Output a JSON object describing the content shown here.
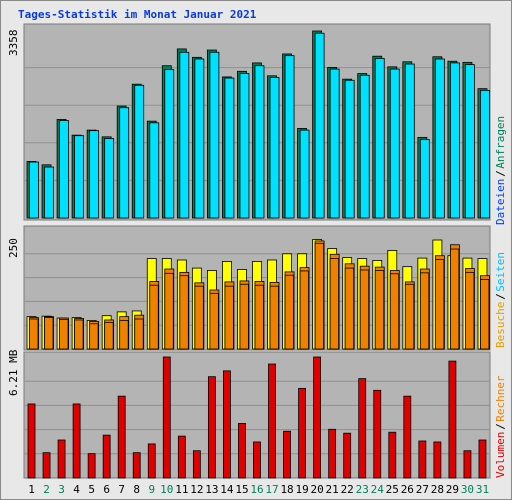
{
  "title": "Tages-Statistik im Monat Januar 2021",
  "colors": {
    "panel_bg": "#b4b4b4",
    "grid": "#909090",
    "hits": "#00805a",
    "files": "#00e0ff",
    "pages": "#f08000",
    "visits": "#ffff00",
    "kbytes": "#e00000",
    "label_hits": "#00805a",
    "label_files": "#0040ff",
    "label_pages": "#00c0ff",
    "label_visits": "#e0a000",
    "label_sites": "#f08000",
    "label_kbytes": "#e00000",
    "day_normal": "#000000",
    "day_weekend": "#00805a"
  },
  "chart_data": [
    {
      "type": "bar",
      "name": "top",
      "ymax_label": "3358",
      "ylim": [
        0,
        3358
      ],
      "categories": [
        "1",
        "2",
        "3",
        "4",
        "5",
        "6",
        "7",
        "8",
        "9",
        "10",
        "11",
        "12",
        "13",
        "14",
        "15",
        "16",
        "17",
        "18",
        "19",
        "20",
        "21",
        "22",
        "23",
        "24",
        "25",
        "26",
        "27",
        "28",
        "29",
        "30",
        "31"
      ],
      "series": [
        {
          "name": "Anfragen",
          "values": [
            1010,
            950,
            1760,
            1480,
            1570,
            1450,
            2000,
            2390,
            1730,
            2720,
            3020,
            2870,
            3000,
            2520,
            2620,
            2770,
            2540,
            2930,
            1600,
            3340,
            2690,
            2480,
            2580,
            2890,
            2700,
            2790,
            1440,
            2880,
            2800,
            2780,
            2310
          ]
        },
        {
          "name": "Dateien",
          "values": [
            1000,
            910,
            1740,
            1470,
            1560,
            1420,
            1970,
            2370,
            1700,
            2650,
            2960,
            2840,
            2960,
            2500,
            2580,
            2720,
            2510,
            2900,
            1570,
            3300,
            2660,
            2460,
            2550,
            2850,
            2660,
            2750,
            1400,
            2840,
            2770,
            2740,
            2280
          ]
        }
      ]
    },
    {
      "type": "bar",
      "name": "middle",
      "ymax_label": "250",
      "ylim": [
        0,
        250
      ],
      "categories": [
        "1",
        "2",
        "3",
        "4",
        "5",
        "6",
        "7",
        "8",
        "9",
        "10",
        "11",
        "12",
        "13",
        "14",
        "15",
        "16",
        "17",
        "18",
        "19",
        "20",
        "21",
        "22",
        "23",
        "24",
        "25",
        "26",
        "27",
        "28",
        "29",
        "30",
        "31"
      ],
      "series": [
        {
          "name": "Seiten",
          "values": [
            68,
            69,
            65,
            66,
            60,
            70,
            78,
            80,
            190,
            190,
            187,
            170,
            165,
            184,
            167,
            184,
            187,
            200,
            200,
            230,
            211,
            192,
            190,
            186,
            207,
            173,
            191,
            229,
            196,
            191,
            190
          ]
        },
        {
          "name": "Besuche",
          "values": [
            66,
            68,
            65,
            64,
            58,
            61,
            68,
            71,
            142,
            168,
            161,
            139,
            124,
            141,
            143,
            142,
            140,
            162,
            171,
            227,
            199,
            179,
            174,
            172,
            165,
            141,
            168,
            196,
            219,
            169,
            154
          ]
        },
        {
          "name": "Rechner",
          "values": [
            63,
            66,
            62,
            61,
            53,
            56,
            60,
            63,
            134,
            159,
            154,
            132,
            117,
            132,
            136,
            134,
            132,
            155,
            164,
            222,
            190,
            170,
            166,
            165,
            158,
            136,
            160,
            188,
            210,
            161,
            146
          ]
        }
      ]
    },
    {
      "type": "bar",
      "name": "bottom",
      "ymax_label": "6.21 MB",
      "ylim": [
        0,
        6.21
      ],
      "categories": [
        "1",
        "2",
        "3",
        "4",
        "5",
        "6",
        "7",
        "8",
        "9",
        "10",
        "11",
        "12",
        "13",
        "14",
        "15",
        "16",
        "17",
        "18",
        "19",
        "20",
        "21",
        "22",
        "23",
        "24",
        "25",
        "26",
        "27",
        "28",
        "29",
        "30",
        "31"
      ],
      "series": [
        {
          "name": "Volumen",
          "values": [
            3.8,
            1.3,
            1.95,
            3.8,
            1.25,
            2.2,
            4.2,
            1.3,
            1.75,
            6.21,
            2.15,
            1.4,
            5.2,
            5.5,
            2.8,
            1.85,
            5.85,
            2.4,
            4.6,
            6.21,
            2.5,
            2.3,
            5.1,
            4.5,
            2.35,
            4.2,
            1.9,
            1.85,
            6.0,
            1.4,
            1.95
          ]
        }
      ]
    }
  ],
  "x_labels": [
    "1",
    "2",
    "3",
    "4",
    "5",
    "6",
    "7",
    "8",
    "9",
    "10",
    "11",
    "12",
    "13",
    "14",
    "15",
    "16",
    "17",
    "18",
    "19",
    "20",
    "21",
    "22",
    "23",
    "24",
    "25",
    "26",
    "27",
    "28",
    "29",
    "30",
    "31"
  ],
  "weekend_days": [
    "2",
    "3",
    "9",
    "10",
    "16",
    "17",
    "23",
    "24",
    "30",
    "31"
  ],
  "legend_right_top": [
    "Anfragen",
    "Dateien"
  ],
  "legend_right_mid": [
    "Seiten",
    "Besuche"
  ],
  "legend_right_bottom": [
    "Rechner",
    "Volumen"
  ],
  "separator": "/"
}
